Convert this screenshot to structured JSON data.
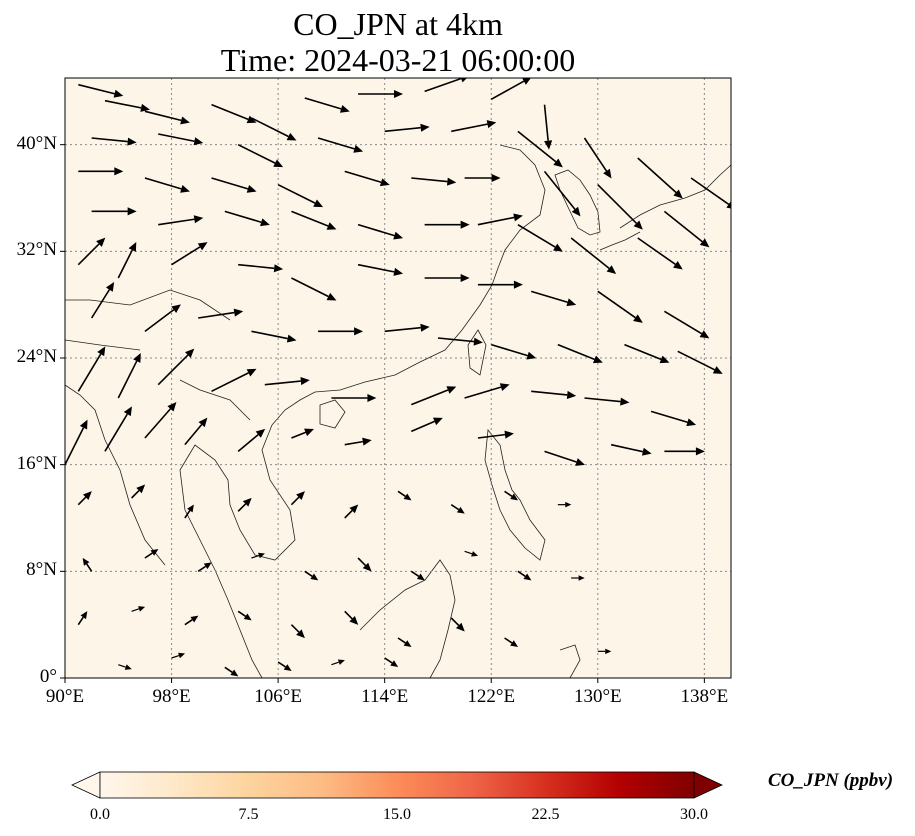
{
  "title_line1": "CO_JPN at 4km",
  "title_line2": "Time: 2024-03-21 06:00:00",
  "map": {
    "lon_range": [
      90,
      140
    ],
    "lat_range": [
      0,
      45
    ],
    "lon_ticks": [
      "90°E",
      "98°E",
      "106°E",
      "114°E",
      "122°E",
      "130°E",
      "138°E"
    ],
    "lat_ticks": [
      "0°",
      "8°N",
      "16°N",
      "24°N",
      "32°N",
      "40°N"
    ],
    "gridlines": "dotted",
    "background_fill": "#fdf5e8",
    "vector_color": "#000000"
  },
  "colorbar": {
    "label": "CO_JPN (ppbv)",
    "ticks": [
      "0.0",
      "7.5",
      "15.0",
      "22.5",
      "30.0"
    ],
    "range": [
      0,
      30
    ],
    "colormap": "OrRd",
    "extend": "both",
    "stops": [
      "#fff7ec",
      "#fee8c8",
      "#fdd49e",
      "#fdbb84",
      "#fc8d59",
      "#ef6548",
      "#d7301f",
      "#b30000",
      "#7f0000"
    ]
  },
  "wind_vectors": {
    "description_units": "lon/lat of arrow tail, u/v direction components",
    "north_band": [
      [
        91,
        44.5,
        1,
        -0.25
      ],
      [
        93,
        43.3,
        1,
        -0.2
      ],
      [
        96,
        42.5,
        1,
        -0.25
      ],
      [
        101,
        43,
        1,
        -0.4
      ],
      [
        104,
        42,
        1,
        -0.5
      ],
      [
        108,
        43.5,
        1,
        -0.3
      ],
      [
        112,
        43.8,
        1,
        0
      ],
      [
        117,
        44,
        1,
        0.35
      ],
      [
        122,
        43.4,
        0.9,
        0.5
      ],
      [
        126,
        43,
        0.1,
        -1
      ],
      [
        92,
        40.5,
        1,
        -0.1
      ],
      [
        97,
        40.8,
        1,
        -0.2
      ],
      [
        103,
        40,
        1,
        -0.5
      ],
      [
        109,
        40.5,
        1,
        -0.3
      ],
      [
        114,
        41,
        1,
        0.1
      ],
      [
        119,
        41,
        1,
        0.2
      ],
      [
        124,
        41,
        1,
        -0.8
      ],
      [
        129,
        40.5,
        0.6,
        -0.9
      ],
      [
        133,
        39,
        1,
        -0.9
      ],
      [
        137,
        37.5,
        1,
        -0.7
      ],
      [
        91,
        38,
        1,
        0
      ],
      [
        96,
        37.5,
        1,
        -0.3
      ],
      [
        101,
        37.5,
        1,
        -0.3
      ],
      [
        106,
        37,
        1,
        -0.5
      ],
      [
        111,
        38,
        1,
        -0.3
      ],
      [
        116,
        37.5,
        1,
        -0.1
      ],
      [
        120,
        37.5,
        0.8,
        0
      ],
      [
        126,
        38,
        0.8,
        -1
      ],
      [
        130,
        37,
        1,
        -1
      ],
      [
        135,
        35,
        1,
        -0.8
      ]
    ],
    "middle_band": [
      [
        92,
        35,
        1,
        0
      ],
      [
        97,
        34,
        1,
        0.15
      ],
      [
        102,
        35,
        1,
        -0.3
      ],
      [
        107,
        35,
        1,
        -0.4
      ],
      [
        112,
        34,
        1,
        -0.3
      ],
      [
        117,
        34,
        1,
        0
      ],
      [
        121,
        34,
        1,
        0.2
      ],
      [
        124,
        34,
        1,
        -0.6
      ],
      [
        128,
        33,
        1,
        -0.8
      ],
      [
        133,
        33,
        1,
        -0.7
      ],
      [
        91,
        31,
        0.6,
        0.6
      ],
      [
        94,
        30,
        0.4,
        0.8
      ],
      [
        98,
        31,
        0.8,
        0.5
      ],
      [
        103,
        31,
        1,
        -0.1
      ],
      [
        107,
        30,
        1,
        -0.5
      ],
      [
        112,
        31,
        1,
        -0.2
      ],
      [
        117,
        30,
        1,
        0
      ],
      [
        121,
        29.5,
        1,
        0
      ],
      [
        125,
        29,
        1,
        -0.3
      ],
      [
        130,
        29,
        1,
        -0.7
      ],
      [
        135,
        27.5,
        1,
        -0.6
      ],
      [
        92,
        27,
        0.5,
        0.8
      ],
      [
        96,
        26,
        0.8,
        0.6
      ],
      [
        100,
        27,
        1,
        0.15
      ],
      [
        104,
        26,
        1,
        -0.2
      ],
      [
        109,
        26,
        1,
        0
      ],
      [
        114,
        26,
        1,
        0.1
      ],
      [
        118,
        25.5,
        1,
        -0.1
      ],
      [
        122,
        25,
        1,
        -0.3
      ],
      [
        127,
        25,
        1,
        -0.4
      ],
      [
        132,
        25,
        1,
        -0.4
      ],
      [
        136,
        24.5,
        1,
        -0.5
      ]
    ],
    "south_band": [
      [
        91,
        21.5,
        0.6,
        1
      ],
      [
        94,
        21,
        0.5,
        1
      ],
      [
        97,
        22,
        0.8,
        0.8
      ],
      [
        101,
        21.5,
        1,
        0.5
      ],
      [
        105,
        22,
        1,
        0.1
      ],
      [
        110,
        21,
        1,
        0
      ],
      [
        116,
        20.5,
        1,
        0.4
      ],
      [
        120,
        21,
        1,
        0.3
      ],
      [
        125,
        21.5,
        1,
        -0.1
      ],
      [
        129,
        21,
        1,
        -0.1
      ],
      [
        134,
        20,
        1,
        -0.3
      ],
      [
        90,
        16,
        0.5,
        1
      ],
      [
        93,
        17,
        0.6,
        1
      ],
      [
        96,
        18,
        0.7,
        0.8
      ],
      [
        99,
        17.5,
        0.5,
        0.6
      ],
      [
        103,
        17,
        0.6,
        0.5
      ],
      [
        107,
        18,
        0.5,
        0.2
      ],
      [
        111,
        17.5,
        0.6,
        0.1
      ],
      [
        116,
        18.5,
        0.7,
        0.3
      ],
      [
        121,
        18,
        0.8,
        0.1
      ],
      [
        126,
        17,
        0.9,
        -0.3
      ],
      [
        131,
        17.5,
        0.9,
        -0.2
      ],
      [
        135,
        17,
        0.9,
        0
      ]
    ],
    "small_band": [
      [
        91,
        13,
        0.3,
        0.3
      ],
      [
        95,
        13.5,
        0.3,
        0.3
      ],
      [
        99,
        12,
        0.2,
        0.3
      ],
      [
        103,
        12.5,
        0.3,
        0.3
      ],
      [
        107,
        13,
        0.3,
        0.3
      ],
      [
        111,
        12,
        0.3,
        0.3
      ],
      [
        115,
        14,
        0.3,
        -0.2
      ],
      [
        119,
        13,
        0.3,
        -0.2
      ],
      [
        123,
        14,
        0.3,
        -0.2
      ],
      [
        127,
        13,
        0.3,
        0
      ],
      [
        92,
        8,
        -0.2,
        0.3
      ],
      [
        96,
        9,
        0.3,
        0.2
      ],
      [
        100,
        8,
        0.3,
        0.2
      ],
      [
        104,
        9,
        0.3,
        0.1
      ],
      [
        108,
        8,
        0.3,
        -0.2
      ],
      [
        112,
        9,
        0.3,
        -0.3
      ],
      [
        116,
        8,
        0.3,
        -0.2
      ],
      [
        120,
        9.5,
        0.3,
        -0.1
      ],
      [
        124,
        8,
        0.3,
        -0.2
      ],
      [
        128,
        7.5,
        0.3,
        0
      ],
      [
        91,
        4,
        0.2,
        0.3
      ],
      [
        95,
        5,
        0.3,
        0.1
      ],
      [
        99,
        4,
        0.3,
        0.2
      ],
      [
        103,
        5,
        0.3,
        -0.2
      ],
      [
        107,
        4,
        0.3,
        -0.3
      ],
      [
        111,
        5,
        0.3,
        -0.3
      ],
      [
        115,
        3,
        0.3,
        -0.2
      ],
      [
        119,
        4.5,
        0.3,
        -0.3
      ],
      [
        123,
        3,
        0.3,
        -0.2
      ],
      [
        130,
        2,
        0.3,
        0
      ],
      [
        94,
        1,
        0.3,
        -0.1
      ],
      [
        98,
        1.5,
        0.3,
        0.1
      ],
      [
        102,
        0.8,
        0.3,
        -0.2
      ],
      [
        106,
        1.2,
        0.3,
        -0.2
      ],
      [
        110,
        1,
        0.3,
        0.1
      ],
      [
        114,
        1.5,
        0.3,
        -0.2
      ]
    ]
  }
}
